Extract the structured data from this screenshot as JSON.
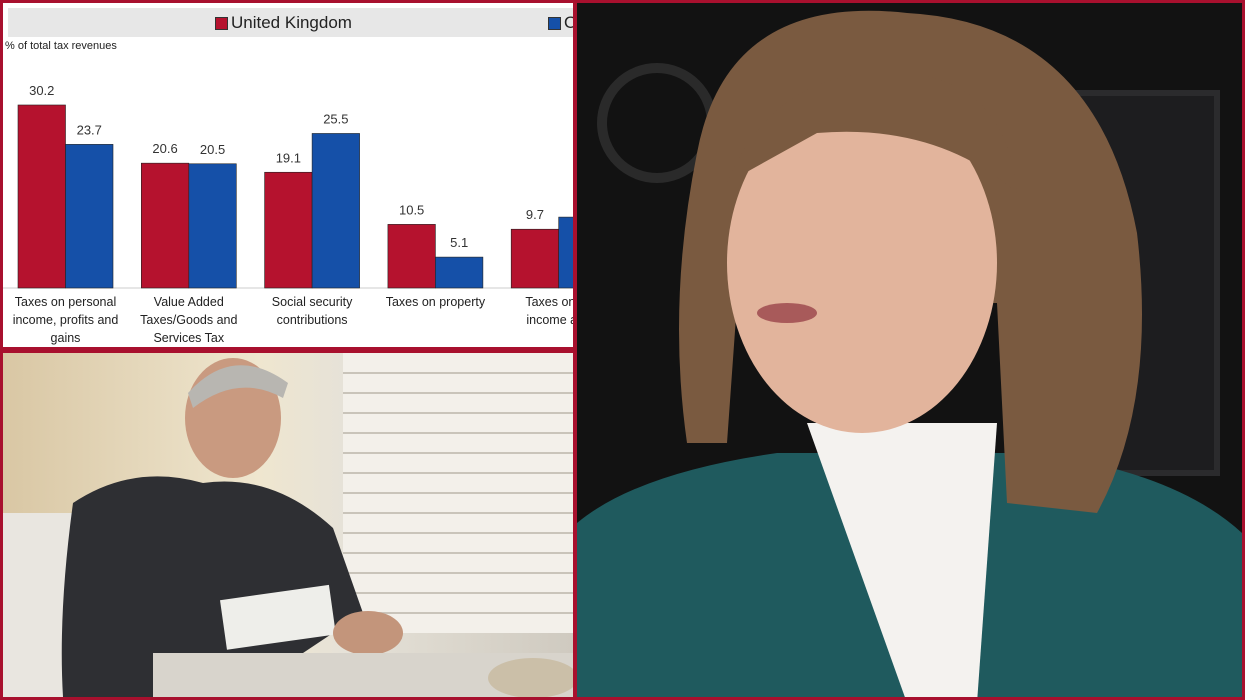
{
  "chart_data": {
    "type": "bar",
    "ylabel": "% of total tax revenues",
    "categories": [
      "Taxes on personal income, profits and gains",
      "Value Added Taxes/Goods and Services Tax",
      "Social security contributions",
      "Taxes on property",
      "Taxes on co income and"
    ],
    "category_lines": [
      [
        "Taxes on personal",
        "income, profits and",
        "gains"
      ],
      [
        "Value Added",
        "Taxes/Goods and",
        "Services Tax"
      ],
      [
        "Social security",
        "contributions"
      ],
      [
        "Taxes on property"
      ],
      [
        "Taxes on co",
        "income and"
      ]
    ],
    "series": [
      {
        "name": "United Kingdom",
        "color": "#b5122e",
        "values": [
          30.2,
          20.6,
          19.1,
          10.5,
          9.7
        ],
        "labels": [
          "30.2",
          "20.6",
          "19.1",
          "10.5",
          "9.7"
        ]
      },
      {
        "name": "O",
        "color": "#1550a8",
        "values": [
          23.7,
          20.5,
          25.5,
          5.1,
          11.7
        ],
        "labels": [
          "23.7",
          "20.5",
          "25.5",
          "5.1",
          ""
        ]
      }
    ],
    "ylim": [
      0,
      32
    ],
    "grid": false,
    "legend": "top"
  },
  "colors": {
    "border": "#a8102e"
  }
}
